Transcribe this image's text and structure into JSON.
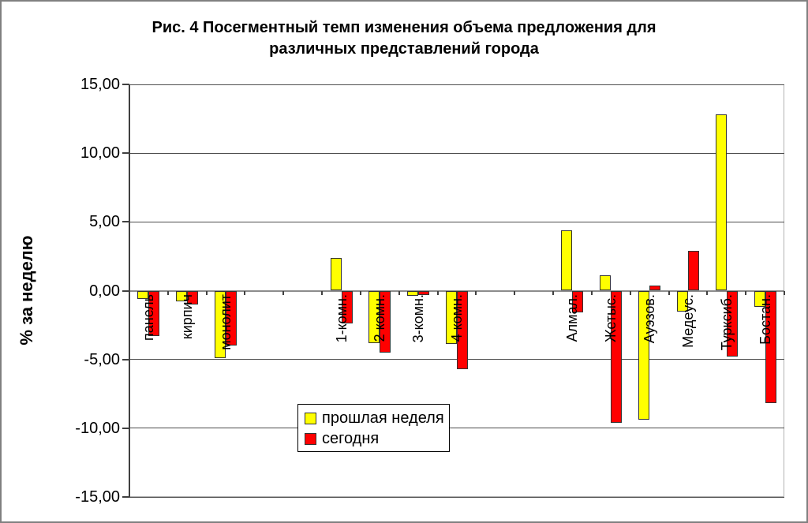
{
  "chart_data": {
    "type": "bar",
    "title": "Рис. 4 Посегментный темп изменения объема предложения для различных представлений города",
    "title_lines": [
      "Рис. 4 Посегментный темп изменения объема предложения для",
      "различных представлений города"
    ],
    "ylabel": "% за неделю",
    "ylim": [
      -15,
      15
    ],
    "ytick_step": 5,
    "grid": true,
    "legend_position": "inside-bottom-center",
    "y_ticks": [
      {
        "label": "15,00",
        "value": 15
      },
      {
        "label": "10,00",
        "value": 10
      },
      {
        "label": "5,00",
        "value": 5
      },
      {
        "label": "0,00",
        "value": 0
      },
      {
        "label": "-5,00",
        "value": -5
      },
      {
        "label": "-10,00",
        "value": -10
      },
      {
        "label": "-15,00",
        "value": -15
      }
    ],
    "categories": [
      "панель",
      "кирпич",
      "монолит",
      "",
      "",
      "1-комн.",
      "2 комн.",
      "3-комн.",
      "4 комн.",
      "",
      "",
      "Алмал.",
      "Жетыс.",
      "Ауэзов.",
      "Медеус.",
      "Турксиб.",
      "Бостан."
    ],
    "series": [
      {
        "name": "прошлая неделя",
        "color": "#FFFF00",
        "values": [
          -0.6,
          -0.8,
          -4.9,
          null,
          null,
          2.4,
          -3.8,
          -0.4,
          -3.9,
          null,
          null,
          4.4,
          1.1,
          -9.4,
          -1.5,
          12.8,
          -1.2
        ]
      },
      {
        "name": "сегодня",
        "color": "#FF0000",
        "values": [
          -3.3,
          -1.0,
          -4.0,
          null,
          null,
          -2.4,
          -4.5,
          -0.3,
          -5.7,
          null,
          null,
          -1.6,
          -9.6,
          0.4,
          2.9,
          -4.8,
          -8.2
        ]
      }
    ],
    "colors": {
      "bar_border": "#333333",
      "gridline": "#4d4d4d",
      "zero_line": "#8c8c8c",
      "plot_border": "#b3b3b3",
      "axis": "#404040",
      "outer_border": "#808080"
    }
  }
}
